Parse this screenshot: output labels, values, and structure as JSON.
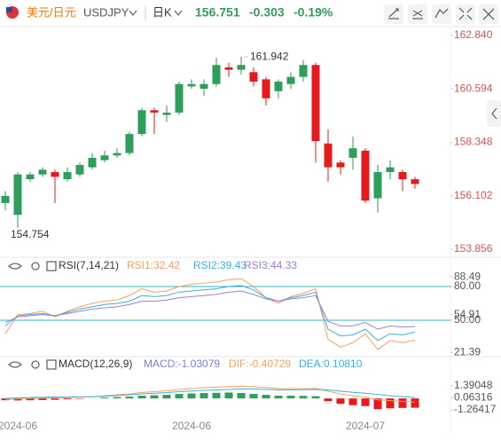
{
  "header": {
    "pair": "美元/日元",
    "symbol": "USDJPY",
    "period": "日K",
    "price": 156.751,
    "change": -0.303,
    "change_pct": "-0.19%"
  },
  "chart_data": [
    {
      "type": "candlestick",
      "categories": [
        null,
        "2024-06",
        null,
        null,
        null,
        null,
        null,
        null,
        null,
        null,
        null,
        null,
        null,
        null,
        null,
        "2024-06",
        null,
        null,
        null,
        null,
        null,
        null,
        null,
        null,
        null,
        null,
        null,
        null,
        null,
        "2024-07",
        null,
        null,
        null,
        null
      ],
      "open": [
        155.8,
        155.3,
        156.8,
        157.0,
        157.1,
        156.8,
        157.0,
        157.3,
        157.6,
        157.8,
        157.9,
        158.7,
        159.7,
        159.5,
        159.6,
        160.7,
        160.6,
        160.8,
        161.5,
        161.4,
        161.3,
        161.0,
        160.5,
        160.8,
        161.1,
        161.6,
        158.3,
        157.5,
        157.7,
        158.0,
        156.0,
        157.1,
        157.1,
        156.8
      ],
      "close": [
        156.1,
        157.0,
        157.0,
        157.2,
        156.9,
        157.1,
        157.4,
        157.7,
        157.8,
        157.9,
        158.7,
        159.7,
        159.6,
        159.6,
        160.8,
        160.8,
        160.8,
        161.6,
        161.4,
        161.6,
        160.9,
        160.2,
        160.9,
        161.1,
        161.6,
        158.4,
        157.3,
        157.3,
        158.1,
        155.9,
        157.1,
        157.3,
        156.8,
        156.6
      ],
      "high": [
        156.3,
        157.1,
        157.1,
        157.3,
        157.2,
        157.3,
        157.5,
        157.9,
        158.0,
        158.1,
        158.8,
        159.8,
        159.8,
        159.9,
        160.9,
        161.0,
        161.0,
        161.9,
        161.7,
        161.942,
        161.5,
        161.1,
        161.0,
        161.3,
        161.8,
        161.7,
        158.9,
        157.6,
        158.6,
        158.1,
        157.4,
        157.6,
        157.2,
        156.9
      ],
      "low": [
        155.5,
        154.754,
        156.7,
        156.9,
        155.8,
        156.7,
        156.9,
        157.2,
        157.5,
        157.7,
        157.8,
        158.6,
        158.7,
        159.2,
        159.5,
        160.6,
        160.3,
        160.7,
        161.1,
        161.2,
        160.7,
        159.9,
        160.2,
        160.6,
        160.9,
        157.5,
        156.7,
        157.0,
        157.2,
        155.8,
        155.4,
        156.8,
        156.3,
        156.4
      ],
      "up_color": "#2e9e5b",
      "down_color": "#e8191c",
      "high_mark": 161.942,
      "low_mark": 154.754,
      "ylim": [
        153.521,
        163.213
      ],
      "yticks": [
        {
          "value": 162.84,
          "label": "162.840"
        },
        160.594,
        158.348,
        156.102,
        153.856
      ]
    },
    {
      "type": "line",
      "title": "RSI(7,14,21)",
      "series": [
        {
          "name": "RSI1:32.42",
          "color": "#f5a05a",
          "values": [
            38,
            55,
            56,
            58,
            53,
            58,
            62,
            65,
            67,
            68,
            72,
            78,
            75,
            76,
            80,
            82,
            83,
            84,
            86,
            87,
            80,
            70,
            65,
            71,
            74,
            78,
            33,
            26,
            30,
            38,
            24,
            32,
            30,
            32.42
          ]
        },
        {
          "name": "RSI2:39.43",
          "color": "#3ab0e0",
          "values": [
            45,
            54,
            55,
            56,
            54,
            57,
            60,
            62,
            64,
            65,
            67,
            72,
            71,
            72,
            75,
            76,
            77,
            78,
            80,
            81,
            77,
            70,
            67,
            70,
            72,
            75,
            42,
            36,
            37,
            42,
            32,
            38,
            37,
            39.43
          ]
        },
        {
          "name": "RSI3:44.33",
          "color": "#9b7fd4",
          "values": [
            48,
            53,
            54,
            55,
            54,
            56,
            58,
            60,
            61,
            62,
            64,
            67,
            67,
            68,
            70,
            71,
            72,
            73,
            75,
            76,
            73,
            69,
            67,
            69,
            70,
            72,
            49,
            45,
            45,
            48,
            42,
            45,
            44,
            44.33
          ]
        }
      ],
      "hlines": [
        80,
        50
      ],
      "hline_color": "#3ab0c8",
      "ylim": [
        19.22,
        90.25
      ],
      "yticks": [
        88.49,
        {
          "value": 80,
          "label": "80.00"
        },
        54.91,
        {
          "value": 50,
          "label": "50.00"
        },
        21.39
      ]
    },
    {
      "type": "macd",
      "title": "MACD(12,26,9)",
      "series": [
        {
          "name": "MACD:-1.03079",
          "color": "#7b7fd6",
          "positive_color": "#2e9e5b",
          "negative_color": "#e8191c",
          "values": [
            -0.2,
            -0.22,
            -0.2,
            -0.18,
            -0.15,
            -0.1,
            -0.05,
            0.02,
            0.1,
            0.15,
            0.2,
            0.3,
            0.35,
            0.4,
            0.5,
            0.55,
            0.6,
            0.62,
            0.65,
            0.6,
            0.5,
            0.4,
            0.3,
            0.3,
            0.28,
            0.25,
            -0.3,
            -0.6,
            -0.75,
            -0.85,
            -1.2,
            -1.1,
            -1.05,
            -1.03079
          ]
        },
        {
          "name": "DIF:-0.40729",
          "color": "#f5a05a",
          "values": [
            -0.1,
            -0.05,
            0,
            0.05,
            0.08,
            0.1,
            0.15,
            0.2,
            0.3,
            0.4,
            0.5,
            0.65,
            0.75,
            0.85,
            1.0,
            1.1,
            1.2,
            1.25,
            1.32,
            1.35,
            1.3,
            1.2,
            1.1,
            1.1,
            1.1,
            1.12,
            0.8,
            0.5,
            0.3,
            0.15,
            -0.15,
            -0.25,
            -0.33,
            -0.40729
          ]
        },
        {
          "name": "DEA:0.10810",
          "color": "#3ab0e0",
          "values": [
            0.0,
            0.06,
            0.1,
            0.14,
            0.16,
            0.15,
            0.18,
            0.19,
            0.25,
            0.32,
            0.4,
            0.5,
            0.57,
            0.65,
            0.75,
            0.82,
            0.9,
            0.94,
            0.99,
            1.05,
            1.05,
            1.0,
            0.95,
            0.95,
            0.96,
            0.99,
            0.95,
            0.8,
            0.68,
            0.58,
            0.45,
            0.3,
            0.2,
            0.1081
          ]
        }
      ],
      "ylim": [
        -2.051,
        2.865
      ],
      "yticks": [
        1.39048,
        0.06316,
        -1.26417
      ]
    }
  ]
}
